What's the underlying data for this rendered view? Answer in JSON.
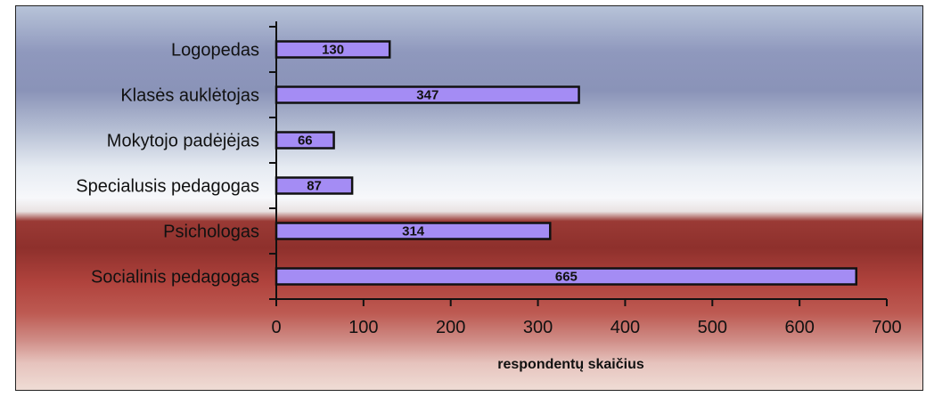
{
  "chart_data": {
    "type": "bar",
    "orientation": "horizontal",
    "categories": [
      "Logopedas",
      "Klasės auklėtojas",
      "Mokytojo padėjėjas",
      "Specialusis pedagogas",
      "Psichologas",
      "Socialinis pedagogas"
    ],
    "values": [
      130,
      347,
      66,
      87,
      314,
      665
    ],
    "value_labels": [
      "130",
      "347",
      "66",
      "87",
      "314",
      "665"
    ],
    "xlabel": "respondentų skaičius",
    "ylabel": "",
    "title": "",
    "xlim": [
      0,
      700
    ],
    "x_ticks": [
      "0",
      "100",
      "200",
      "300",
      "400",
      "500",
      "600",
      "700"
    ],
    "bar_color": "#a48cf4",
    "bar_border_color": "#111111",
    "grid": false,
    "legend": "none"
  }
}
